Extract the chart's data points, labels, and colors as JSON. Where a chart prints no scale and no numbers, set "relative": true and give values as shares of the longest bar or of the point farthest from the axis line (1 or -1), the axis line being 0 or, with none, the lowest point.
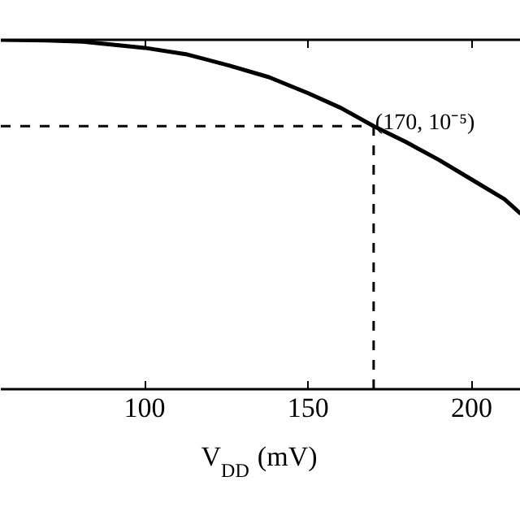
{
  "chart_data": {
    "type": "line",
    "relative": true,
    "xlabel": "V$_{DD}$ (mV)",
    "x": [
      56,
      70,
      81,
      100,
      113,
      126,
      138,
      150,
      160,
      170,
      180,
      190,
      200,
      210,
      215
    ],
    "series": [
      {
        "color": "#000000",
        "values": [
          1.0,
          0.998,
          0.995,
          0.977,
          0.958,
          0.926,
          0.893,
          0.847,
          0.805,
          0.753,
          0.707,
          0.656,
          0.6,
          0.544,
          0.502
        ]
      }
    ],
    "xlim": [
      56,
      215
    ],
    "xticks": [
      100,
      150,
      200
    ],
    "ref_lines": [
      {
        "axis": "x",
        "value": 170,
        "color": "#000000",
        "line_style": "dashed"
      },
      {
        "axis": "y",
        "value": 0.753,
        "color": "#000000",
        "line_style": "dashed"
      }
    ],
    "annotations": [
      {
        "text": "(170, 10⁻⁵)",
        "x": 170,
        "y": 0.753
      }
    ],
    "tick_labels": "x",
    "grid": false,
    "legend": false,
    "marker": "none",
    "line_style": "solid"
  }
}
